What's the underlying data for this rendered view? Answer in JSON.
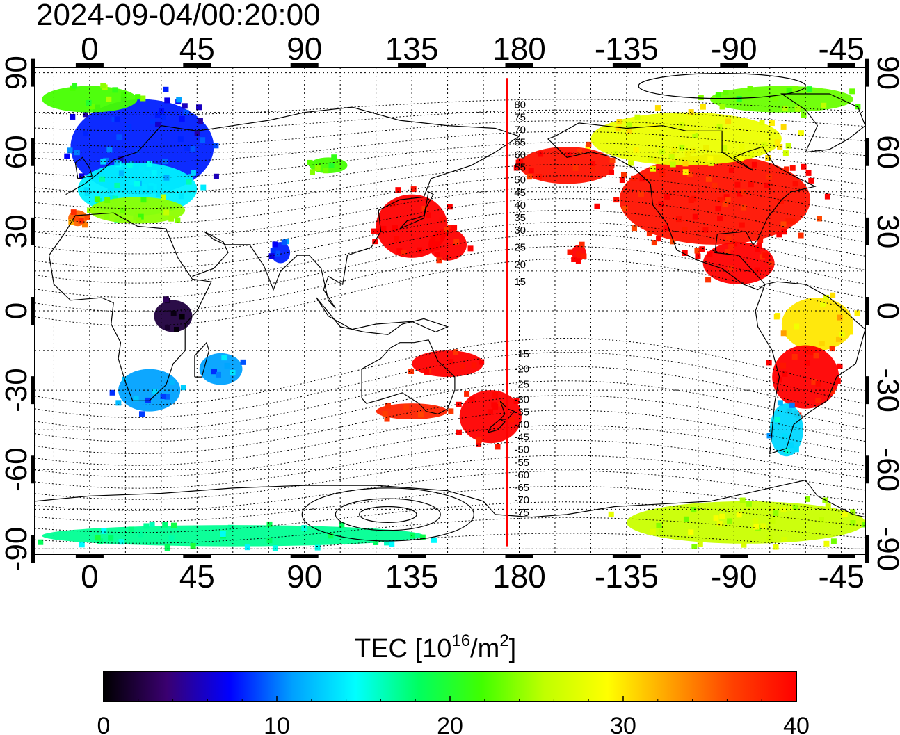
{
  "title": "2024-09-04/00:20:00",
  "lon_ticks": [
    "0",
    "45",
    "90",
    "135",
    "180",
    "-135",
    "-90",
    "-45"
  ],
  "lon_tick_values": [
    0,
    45,
    90,
    135,
    180,
    225,
    270,
    315
  ],
  "lat_ticks": [
    "90",
    "60",
    "30",
    "0",
    "-30",
    "-60",
    "-90"
  ],
  "lat_tick_values": [
    90,
    60,
    30,
    0,
    -30,
    -60,
    -90
  ],
  "magnetic_lat_labels": [
    "80",
    "75",
    "70",
    "65",
    "60",
    "55",
    "50",
    "45",
    "40",
    "35",
    "30",
    "25",
    "20",
    "15",
    "-15",
    "-20",
    "-25",
    "-30",
    "-35",
    "-40",
    "-45",
    "-50",
    "-55",
    "-60",
    "-65",
    "-70",
    "-75"
  ],
  "colorbar": {
    "title_main": "TEC  [10",
    "title_sup1": "16",
    "title_mid": "/m",
    "title_sup2": "2",
    "title_end": "]",
    "min": 0,
    "max": 40,
    "tick_labels": [
      "0",
      "10",
      "20",
      "30",
      "40"
    ],
    "tick_values": [
      0,
      10,
      20,
      30,
      40
    ],
    "colors": [
      "#000000",
      "#3a0070",
      "#0000ff",
      "#00a0ff",
      "#00ffff",
      "#00ff60",
      "#40ff00",
      "#c0ff00",
      "#ffff00",
      "#ffa000",
      "#ff4000",
      "#ff0000"
    ]
  },
  "map": {
    "lon_min": -23,
    "lon_max": 325,
    "lat_min": -92,
    "lat_max": 92,
    "terminator_lon": 175,
    "terminator_color": "#ff0000",
    "tec_regions": [
      {
        "name": "europe-north",
        "lon": 22,
        "lat": 62,
        "rx": 30,
        "ry": 18,
        "tec": 8
      },
      {
        "name": "europe-central",
        "lon": 20,
        "lat": 46,
        "rx": 25,
        "ry": 10,
        "tec": 14
      },
      {
        "name": "europe-south",
        "lon": 20,
        "lat": 38,
        "rx": 20,
        "ry": 5,
        "tec": 24
      },
      {
        "name": "greenland-west",
        "lon": 0,
        "lat": 80,
        "rx": 20,
        "ry": 5,
        "tec": 22
      },
      {
        "name": "iberia",
        "lon": -5,
        "lat": 35,
        "rx": 4,
        "ry": 3,
        "tec": 35
      },
      {
        "name": "south-africa",
        "lon": 25,
        "lat": -30,
        "rx": 13,
        "ry": 8,
        "tec": 11
      },
      {
        "name": "central-africa",
        "lon": 35,
        "lat": -2,
        "rx": 8,
        "ry": 6,
        "tec": 2
      },
      {
        "name": "east-africa",
        "lon": 55,
        "lat": -22,
        "rx": 9,
        "ry": 6,
        "tec": 11
      },
      {
        "name": "japan-china",
        "lon": 135,
        "lat": 32,
        "rx": 15,
        "ry": 12,
        "tec": 40
      },
      {
        "name": "west-pacific",
        "lon": 150,
        "lat": 25,
        "rx": 8,
        "ry": 6,
        "tec": 40
      },
      {
        "name": "australia-north",
        "lon": 150,
        "lat": -20,
        "rx": 15,
        "ry": 5,
        "tec": 40
      },
      {
        "name": "new-zealand",
        "lon": 168,
        "lat": -40,
        "rx": 13,
        "ry": 10,
        "tec": 40
      },
      {
        "name": "australia-south",
        "lon": 135,
        "lat": -38,
        "rx": 15,
        "ry": 3,
        "tec": 38
      },
      {
        "name": "north-america",
        "lon": 262,
        "lat": 42,
        "rx": 40,
        "ry": 17,
        "tec": 39
      },
      {
        "name": "canada",
        "lon": 250,
        "lat": 65,
        "rx": 40,
        "ry": 10,
        "tec": 28
      },
      {
        "name": "alaska",
        "lon": 200,
        "lat": 55,
        "rx": 20,
        "ry": 7,
        "tec": 39
      },
      {
        "name": "arctic-canada",
        "lon": 290,
        "lat": 80,
        "rx": 30,
        "ry": 5,
        "tec": 23
      },
      {
        "name": "central-america",
        "lon": 272,
        "lat": 18,
        "rx": 15,
        "ry": 8,
        "tec": 40
      },
      {
        "name": "south-america-north",
        "lon": 305,
        "lat": -5,
        "rx": 15,
        "ry": 10,
        "tec": 30
      },
      {
        "name": "south-america",
        "lon": 300,
        "lat": -25,
        "rx": 14,
        "ry": 12,
        "tec": 40
      },
      {
        "name": "patagonia",
        "lon": 292,
        "lat": -45,
        "rx": 7,
        "ry": 10,
        "tec": 13
      },
      {
        "name": "antarctica-east",
        "lon": 275,
        "lat": -80,
        "rx": 50,
        "ry": 8,
        "tec": 26
      },
      {
        "name": "antarctica-west",
        "lon": 60,
        "lat": -85,
        "rx": 80,
        "ry": 4,
        "tec": 17
      },
      {
        "name": "hawaii",
        "lon": 205,
        "lat": 22,
        "rx": 3,
        "ry": 3,
        "tec": 40
      },
      {
        "name": "india",
        "lon": 80,
        "lat": 22,
        "rx": 4,
        "ry": 4,
        "tec": 8
      },
      {
        "name": "siberia",
        "lon": 100,
        "lat": 55,
        "rx": 8,
        "ry": 3,
        "tec": 22
      }
    ]
  }
}
